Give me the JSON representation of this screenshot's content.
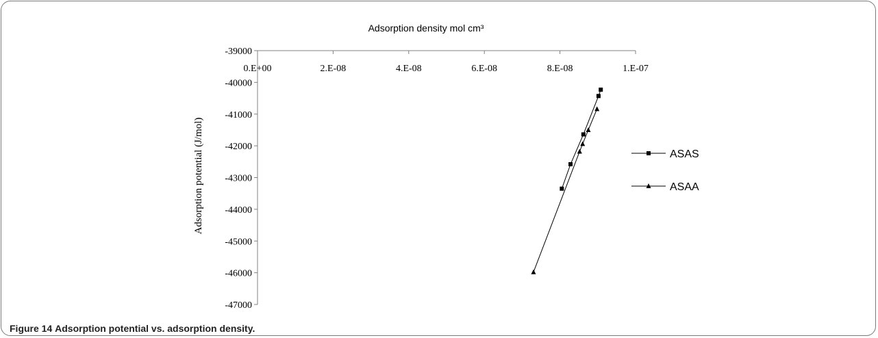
{
  "figure": {
    "label": "Figure 14",
    "caption": "Adsorption potential vs. adsorption density."
  },
  "chart_data": {
    "type": "line",
    "title": "Adsorption density mol cm³",
    "xlabel": "",
    "ylabel": "Adsorption potential (J/mol)",
    "xlim": [
      0,
      1e-07
    ],
    "ylim": [
      -47000,
      -39000
    ],
    "x_axis_position": "top",
    "x_ticks": [
      0,
      2e-08,
      4e-08,
      6e-08,
      8e-08,
      1e-07
    ],
    "x_tick_labels": [
      "0.E+00",
      "2.E-08",
      "4.E-08",
      "6.E-08",
      "8.E-08",
      "1.E-07"
    ],
    "y_ticks": [
      -39000,
      -40000,
      -41000,
      -42000,
      -43000,
      -44000,
      -45000,
      -46000,
      -47000
    ],
    "y_tick_labels": [
      "-39000",
      "-40000",
      "-41000",
      "-42000",
      "-43000",
      "-44000",
      "-45000",
      "-46000",
      "-47000"
    ],
    "grid": false,
    "legend": "right",
    "series": [
      {
        "name": "ASAS",
        "marker": "square",
        "color": "#000000",
        "x": [
          8.05e-08,
          8.28e-08,
          8.62e-08,
          9.02e-08,
          9.08e-08
        ],
        "y": [
          -43350,
          -42580,
          -41640,
          -40430,
          -40230
        ]
      },
      {
        "name": "ASAA",
        "marker": "triangle",
        "color": "#000000",
        "x": [
          7.3e-08,
          8.52e-08,
          8.6e-08,
          8.75e-08,
          8.98e-08
        ],
        "y": [
          -45980,
          -42180,
          -41940,
          -41500,
          -40840
        ]
      }
    ]
  }
}
